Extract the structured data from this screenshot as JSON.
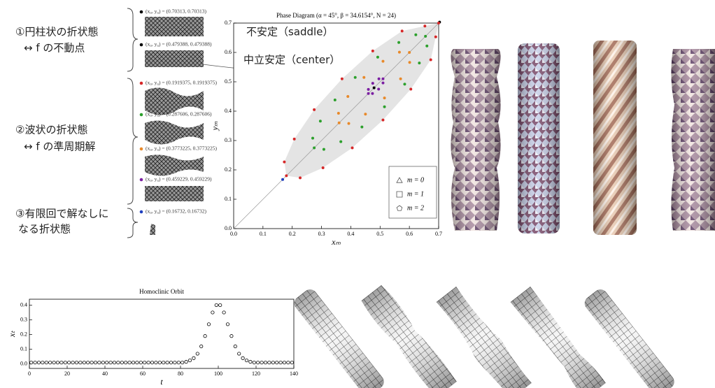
{
  "groups": [
    {
      "lines": [
        "①円柱状の折状態",
        "↔ f の不動点"
      ]
    },
    {
      "lines": [
        "②波状の折状態",
        "↔ f の準周期解"
      ]
    },
    {
      "lines": [
        "③有限回で解なしに",
        "なる折状態"
      ]
    }
  ],
  "chart_data": [
    {
      "type": "scatter",
      "title": "Phase Diagram (α = 45°, β = 34.6154°, N = 24)",
      "x_label": "xₘ",
      "y_label": "yₘ",
      "xlim": [
        0,
        0.7
      ],
      "ylim": [
        0,
        0.7
      ],
      "xticks": [
        {
          "value": 0,
          "label": "0.0"
        },
        0.1,
        0.2,
        0.3,
        0.4,
        0.5,
        0.6,
        0.7
      ],
      "yticks": [
        {
          "value": 0,
          "label": "0.0"
        },
        0.1,
        0.2,
        0.3,
        0.4,
        0.5,
        0.6,
        0.7
      ],
      "annotations": [
        "不安定（saddle）",
        "中立安定（center）"
      ],
      "marker_legend": [
        {
          "marker": "triangle",
          "label": "m = 0"
        },
        {
          "marker": "square",
          "label": "m = 1"
        },
        {
          "marker": "pentagon",
          "label": "m = 2"
        }
      ],
      "series": [
        {
          "name": "(x₀, y₀) = (0.70313, 0.70313)",
          "color": "#000000",
          "x": [
            0.70313
          ],
          "values": [
            0.70313
          ]
        },
        {
          "name": "(x₀, y₀) = (0.479388, 0.479388)",
          "color": "#000000",
          "x": [
            0.479388
          ],
          "values": [
            0.479388
          ]
        },
        {
          "name": "(x₀, y₀) = (0.1919375, 0.1919375)",
          "color": "#d62728",
          "fill": "#e4e4e4",
          "x": [
            0.7,
            0.653,
            0.575,
            0.475,
            0.37,
            0.275,
            0.207,
            0.173,
            0.18,
            0.227,
            0.305,
            0.405,
            0.51,
            0.605,
            0.673,
            0.69
          ],
          "values": [
            0.7,
            0.69,
            0.673,
            0.605,
            0.51,
            0.405,
            0.305,
            0.227,
            0.18,
            0.173,
            0.207,
            0.275,
            0.37,
            0.475,
            0.575,
            0.653
          ]
        },
        {
          "name": "(x₀, y₀) = (0.287606, 0.287606)",
          "color": "#2ca02c",
          "x": [
            0.655,
            0.622,
            0.564,
            0.492,
            0.415,
            0.346,
            0.296,
            0.27,
            0.275,
            0.308,
            0.366,
            0.438,
            0.515,
            0.584,
            0.634,
            0.66
          ],
          "values": [
            0.655,
            0.66,
            0.634,
            0.584,
            0.515,
            0.438,
            0.366,
            0.308,
            0.275,
            0.27,
            0.296,
            0.346,
            0.415,
            0.492,
            0.564,
            0.622
          ]
        },
        {
          "name": "(x₀, y₀) = (0.3773225, 0.3773225)",
          "color": "#e8892a",
          "x": [
            0.6,
            0.566,
            0.51,
            0.445,
            0.39,
            0.358,
            0.36,
            0.393,
            0.45,
            0.515,
            0.57,
            0.601
          ],
          "values": [
            0.6,
            0.601,
            0.57,
            0.515,
            0.45,
            0.393,
            0.36,
            0.358,
            0.39,
            0.445,
            0.51,
            0.566
          ]
        },
        {
          "name": "(x₀, y₀) = (0.459229, 0.459229)",
          "color": "#7b1fa2",
          "x": [
            0.51,
            0.496,
            0.475,
            0.46,
            0.46,
            0.474,
            0.495,
            0.51
          ],
          "values": [
            0.51,
            0.51,
            0.495,
            0.474,
            0.46,
            0.46,
            0.475,
            0.496
          ]
        },
        {
          "name": "(x₀, y₀) = (0.16732, 0.16732)",
          "color": "#1f3fbf",
          "x": [
            0.16732
          ],
          "values": [
            0.16732
          ]
        }
      ]
    },
    {
      "type": "scatter",
      "title": "Homoclinic Orbit",
      "x_label": "t",
      "y_label": "xₜ",
      "xlim": [
        0,
        140
      ],
      "ylim": [
        -0.03,
        0.44
      ],
      "xticks": [
        0,
        20,
        40,
        60,
        80,
        100,
        120,
        140
      ],
      "yticks": [
        {
          "value": 0,
          "label": "0.0"
        },
        0.1,
        0.2,
        0.3,
        0.4
      ],
      "x": [
        1,
        3,
        5,
        7,
        9,
        11,
        13,
        15,
        17,
        19,
        21,
        23,
        25,
        27,
        29,
        31,
        33,
        35,
        37,
        39,
        41,
        43,
        45,
        47,
        49,
        51,
        53,
        55,
        57,
        59,
        61,
        63,
        65,
        67,
        69,
        71,
        73,
        75,
        77,
        79,
        81,
        83,
        85,
        87,
        89,
        91,
        93,
        95,
        97,
        99,
        101,
        103,
        105,
        107,
        109,
        111,
        113,
        115,
        117,
        119,
        121,
        123,
        125,
        127,
        129,
        131,
        133,
        135,
        137,
        139
      ],
      "values": [
        0.01,
        0.01,
        0.01,
        0.01,
        0.01,
        0.01,
        0.01,
        0.01,
        0.01,
        0.01,
        0.01,
        0.01,
        0.01,
        0.01,
        0.01,
        0.01,
        0.01,
        0.01,
        0.01,
        0.01,
        0.01,
        0.01,
        0.01,
        0.01,
        0.01,
        0.01,
        0.01,
        0.01,
        0.01,
        0.01,
        0.01,
        0.01,
        0.01,
        0.01,
        0.01,
        0.01,
        0.01,
        0.01,
        0.01,
        0.01,
        0.01,
        0.015,
        0.025,
        0.04,
        0.07,
        0.12,
        0.19,
        0.27,
        0.35,
        0.4,
        0.4,
        0.35,
        0.27,
        0.19,
        0.12,
        0.07,
        0.04,
        0.025,
        0.015,
        0.01,
        0.01,
        0.01,
        0.01,
        0.01,
        0.01,
        0.01,
        0.01,
        0.01,
        0.01,
        0.01
      ]
    }
  ]
}
